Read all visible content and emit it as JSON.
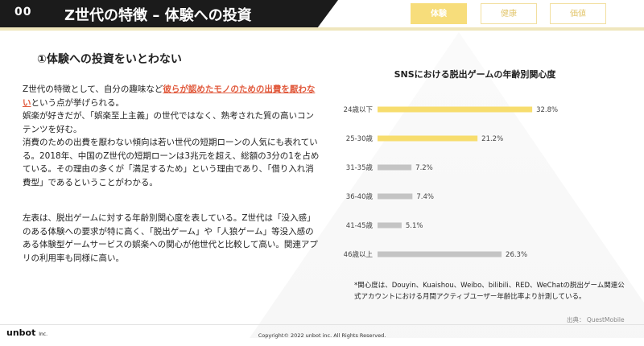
{
  "header": {
    "number": "00",
    "title": "Z世代の特徴 – 体験への投資",
    "tabs": [
      {
        "label": "体験",
        "active": true
      },
      {
        "label": "健康",
        "active": false
      },
      {
        "label": "価値",
        "active": false
      }
    ]
  },
  "section_title": "①体験への投資をいとわない",
  "paragraph1": {
    "pre": "Z世代の特徴として、自分の趣味など",
    "highlight": "彼らが認めたモノのための出費を厭わない",
    "post": "という点が挙げられる。",
    "line2": "娯楽が好きだが、「娯楽至上主義」の世代ではなく、熟考された質の高いコンテンツを好む。",
    "line3": "消費のための出費を厭わない傾向は若い世代の短期ローンの人気にも表れている。2018年、中国のZ世代の短期ローンは3兆元を超え、総額の3分の1を占めている。その理由の多くが「満足するため」という理由であり、「借り入れ消費型」であるということがわかる。"
  },
  "paragraph2": "左表は、脱出ゲームに対する年齢別関心度を表している。Z世代は「没入感」のある体験への要求が特に高く、「脱出ゲーム」や「人狼ゲーム」等没入感のある体験型ゲームサービスの娯楽への関心が他世代と比較して高い。関連アプリの利用率も同様に高い。",
  "chart_data": {
    "type": "bar",
    "orientation": "horizontal",
    "title": "SNSにおける脱出ゲームの年齢別関心度",
    "categories": [
      "24歳以下",
      "25-30歳",
      "31-35歳",
      "36-40歳",
      "41-45歳",
      "46歳以上"
    ],
    "values": [
      32.8,
      21.2,
      7.2,
      7.4,
      5.1,
      26.3
    ],
    "value_suffix": "%",
    "highlight_color": "#f7dd6e",
    "bar_color": "#c4c4c4",
    "highlighted": [
      0,
      1
    ],
    "xlim": [
      0,
      35
    ],
    "grid": false
  },
  "notes": "*関心度は、Douyin、Kuaishou、Weibo、bilibili、RED、WeChatの脱出ゲーム関連公式アカウントにおける月間アクティブユーザー年齢比率より計測している。",
  "source": "出典： QuestMobile",
  "footer": {
    "logo": "unbot",
    "logo_suffix": "Inc.",
    "copyright": "Copyright© 2022 unbot inc. All Rights Reserved."
  }
}
